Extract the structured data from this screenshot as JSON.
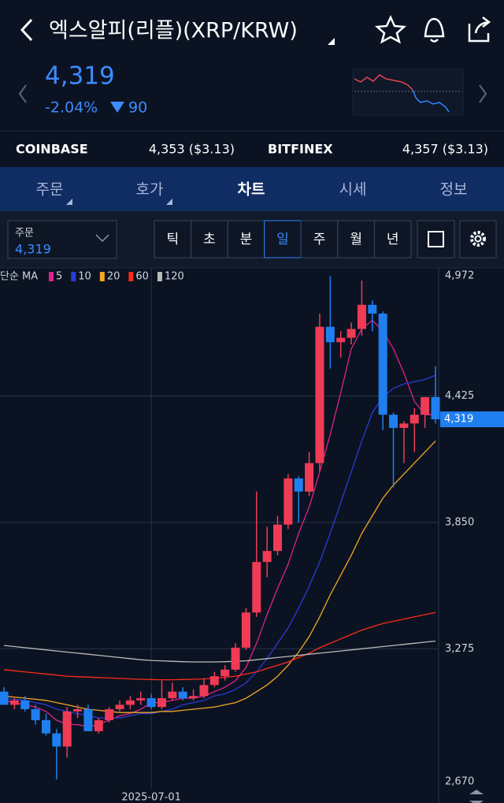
{
  "header": {
    "title": "엑스알피(리플)(XRP/KRW)",
    "price": "4,319",
    "change_pct": "-2.04%",
    "change": "90"
  },
  "exchanges": [
    {
      "name": "COINBASE",
      "price": "4,353 ($3.13)"
    },
    {
      "name": "BITFINEX",
      "price": "4,357 ($3.13)"
    }
  ],
  "tabs": [
    "주문",
    "호가",
    "차트",
    "시세",
    "정보"
  ],
  "order_box": {
    "label": "주문",
    "value": "4,319"
  },
  "periods": [
    "틱",
    "초",
    "분",
    "일",
    "주",
    "월",
    "년"
  ],
  "chart_data": {
    "type": "candlestick",
    "legend_label": "단순 MA",
    "categories": [
      null,
      null,
      null,
      null,
      null,
      null,
      null,
      null,
      null,
      null,
      null,
      null,
      null,
      null,
      "2025-07-01",
      null,
      null,
      null,
      null,
      null,
      null,
      null,
      null,
      null,
      null,
      null,
      null,
      null,
      null,
      null,
      null,
      null,
      null,
      null,
      null,
      null,
      null,
      null,
      null,
      null,
      null,
      null
    ],
    "open": [
      3080,
      3020,
      3040,
      3000,
      2950,
      2890,
      2830,
      2990,
      3000,
      2900,
      2950,
      3000,
      3020,
      3040,
      3050,
      3010,
      3050,
      3080,
      3050,
      3060,
      3110,
      3150,
      3180,
      3280,
      3440,
      3670,
      3720,
      3840,
      4050,
      3990,
      4120,
      4740,
      4670,
      4690,
      4730,
      4840,
      4800,
      4340,
      4280,
      4300,
      4340,
      4420
    ],
    "high": [
      3100,
      3050,
      3060,
      3020,
      2980,
      2910,
      3010,
      3020,
      3020,
      2960,
      3010,
      3040,
      3060,
      3080,
      3070,
      3130,
      3120,
      3100,
      3090,
      3140,
      3170,
      3200,
      3300,
      3460,
      3990,
      3830,
      3880,
      4070,
      4060,
      4170,
      4800,
      4970,
      4720,
      4760,
      4950,
      4860,
      4810,
      4350,
      4310,
      4370,
      4420,
      4560
    ],
    "low": [
      3020,
      3000,
      2990,
      2930,
      2880,
      2680,
      2780,
      2960,
      2900,
      2890,
      2940,
      2990,
      3000,
      3020,
      3000,
      3000,
      3040,
      3040,
      3040,
      3050,
      3100,
      3130,
      3170,
      3270,
      3420,
      3600,
      3700,
      3820,
      3850,
      3970,
      4080,
      4550,
      4600,
      4660,
      4700,
      4720,
      4270,
      4010,
      4120,
      4170,
      4280,
      4300
    ],
    "close": [
      3020,
      3040,
      3000,
      2950,
      2890,
      2830,
      2990,
      3000,
      2900,
      2950,
      3000,
      3020,
      3040,
      3050,
      3010,
      3050,
      3080,
      3050,
      3060,
      3110,
      3150,
      3180,
      3280,
      3440,
      3670,
      3720,
      3840,
      4050,
      3990,
      4120,
      4740,
      4670,
      4690,
      4730,
      4840,
      4800,
      4340,
      4280,
      4300,
      4340,
      4420,
      4319
    ],
    "up_color": "#ef3b56",
    "down_color": "#1f7ff0",
    "series": [
      {
        "name": "5",
        "color": "#e0208f",
        "values": [
          3040,
          3030,
          3020,
          3010,
          2990,
          2950,
          2930,
          2930,
          2920,
          2930,
          2950,
          2970,
          2980,
          3000,
          3030,
          3030,
          3040,
          3050,
          3050,
          3060,
          3080,
          3100,
          3130,
          3190,
          3300,
          3430,
          3550,
          3660,
          3800,
          3920,
          4080,
          4250,
          4440,
          4640,
          4730,
          4770,
          4720,
          4640,
          4530,
          4400,
          4340,
          4340
        ]
      },
      {
        "name": "10",
        "color": "#2a3bd6",
        "values": [
          3050,
          3045,
          3040,
          3030,
          3020,
          3000,
          2990,
          2980,
          2970,
          2960,
          2960,
          2960,
          2970,
          2980,
          2980,
          2990,
          3000,
          3020,
          3030,
          3040,
          3060,
          3070,
          3090,
          3120,
          3170,
          3230,
          3300,
          3370,
          3460,
          3560,
          3670,
          3800,
          3940,
          4080,
          4220,
          4350,
          4420,
          4460,
          4480,
          4490,
          4500,
          4520
        ]
      },
      {
        "name": "20",
        "color": "#f5a623",
        "values": [
          3060,
          3055,
          3050,
          3045,
          3040,
          3030,
          3020,
          3010,
          3000,
          2995,
          2990,
          2985,
          2985,
          2985,
          2985,
          2990,
          2990,
          2995,
          3000,
          3005,
          3010,
          3020,
          3030,
          3050,
          3080,
          3110,
          3150,
          3200,
          3260,
          3330,
          3420,
          3520,
          3610,
          3700,
          3800,
          3880,
          3960,
          4020,
          4070,
          4120,
          4170,
          4220
        ]
      },
      {
        "name": "60",
        "color": "#ff2a1a",
        "values": [
          3180,
          3175,
          3170,
          3165,
          3160,
          3155,
          3150,
          3148,
          3146,
          3144,
          3142,
          3140,
          3138,
          3136,
          3135,
          3134,
          3134,
          3135,
          3136,
          3138,
          3140,
          3145,
          3150,
          3160,
          3170,
          3185,
          3200,
          3215,
          3235,
          3255,
          3280,
          3300,
          3320,
          3340,
          3360,
          3375,
          3390,
          3400,
          3410,
          3420,
          3430,
          3440
        ]
      },
      {
        "name": "120",
        "color": "#bbbbbb",
        "values": [
          3290,
          3285,
          3280,
          3275,
          3270,
          3265,
          3260,
          3255,
          3250,
          3245,
          3240,
          3235,
          3230,
          3225,
          3222,
          3220,
          3218,
          3216,
          3215,
          3215,
          3215,
          3216,
          3218,
          3220,
          3225,
          3230,
          3235,
          3240,
          3245,
          3250,
          3255,
          3260,
          3265,
          3270,
          3275,
          3280,
          3285,
          3290,
          3295,
          3300,
          3305,
          3310
        ]
      }
    ],
    "ylim": [
      2670,
      4972
    ],
    "yticks": [
      {
        "value": 2670,
        "label": "2,670"
      },
      {
        "value": 3275,
        "label": "3,275"
      },
      {
        "value": 3850,
        "label": "3,850"
      },
      {
        "value": 4425,
        "label": "4,425"
      },
      {
        "value": 4972,
        "label": "4,972"
      }
    ],
    "last_price": {
      "value": 4319,
      "label": "4,319"
    },
    "grid": true
  }
}
